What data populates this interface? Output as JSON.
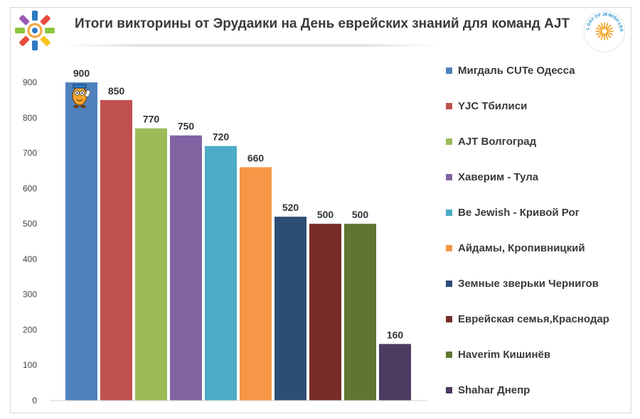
{
  "header": {
    "title": "Итоги викторины от Эрудаики на День еврейских знаний для команд AJT",
    "right_logo_text": "GLOBAL DAY OF JEWISH LEARNING"
  },
  "chart_data": {
    "type": "bar",
    "title": "Итоги викторины от Эрудаики на День еврейских знаний для команд AJT",
    "xlabel": "",
    "ylabel": "",
    "ylim": [
      0,
      900
    ],
    "yticks": [
      0,
      100,
      200,
      300,
      400,
      500,
      600,
      700,
      800,
      900
    ],
    "grid": false,
    "legend_position": "right",
    "series": [
      {
        "name": "Мигдаль CUTe Одесса",
        "value": 900,
        "color": "#4f81bd"
      },
      {
        "name": "YJC Тбилиси",
        "value": 850,
        "color": "#c0504d"
      },
      {
        "name": "AJT Волгоград",
        "value": 770,
        "color": "#9bbb59"
      },
      {
        "name": "Хаверим - Тула",
        "value": 750,
        "color": "#8064a2"
      },
      {
        "name": "Be Jewish - Кривой Рог",
        "value": 720,
        "color": "#4bacc6"
      },
      {
        "name": "Айдамы, Кропивницкий",
        "value": 660,
        "color": "#f79646"
      },
      {
        "name": "Земные зверьки Чернигов",
        "value": 520,
        "color": "#2c4d75"
      },
      {
        "name": "Еврейская семья,Краснодар",
        "value": 500,
        "color": "#772c2a"
      },
      {
        "name": "Haverim Кишинёв",
        "value": 500,
        "color": "#5f7530"
      },
      {
        "name": "Shahar Днепр",
        "value": 160,
        "color": "#4d3b62"
      }
    ]
  }
}
